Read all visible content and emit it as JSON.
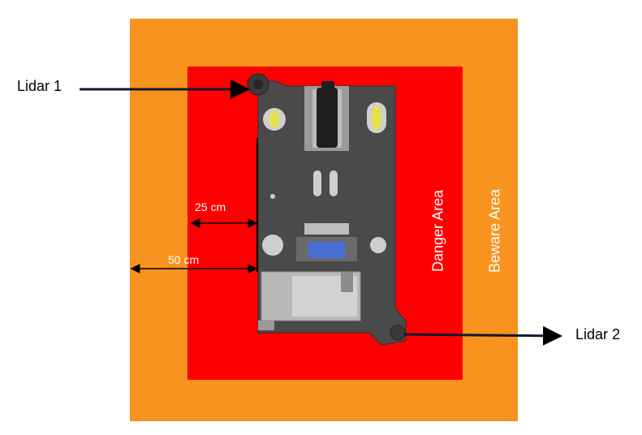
{
  "zones": {
    "beware": {
      "label": "Beware Area",
      "color": "#f7931e"
    },
    "danger": {
      "label": "Danger Area",
      "color": "#ff0000"
    }
  },
  "lidars": {
    "lidar1": {
      "label": "Lidar 1"
    },
    "lidar2": {
      "label": "Lidar 2"
    }
  },
  "dimensions": {
    "inner": {
      "label": "25 cm"
    },
    "outer": {
      "label": "50 cm"
    }
  },
  "colors": {
    "robot_body": "#4a4a4a",
    "robot_panel": "#b9b9b9",
    "sensor_blue": "#4a6fd4",
    "wheel_yellow": "#e8e04a",
    "arrow": "#000000"
  }
}
